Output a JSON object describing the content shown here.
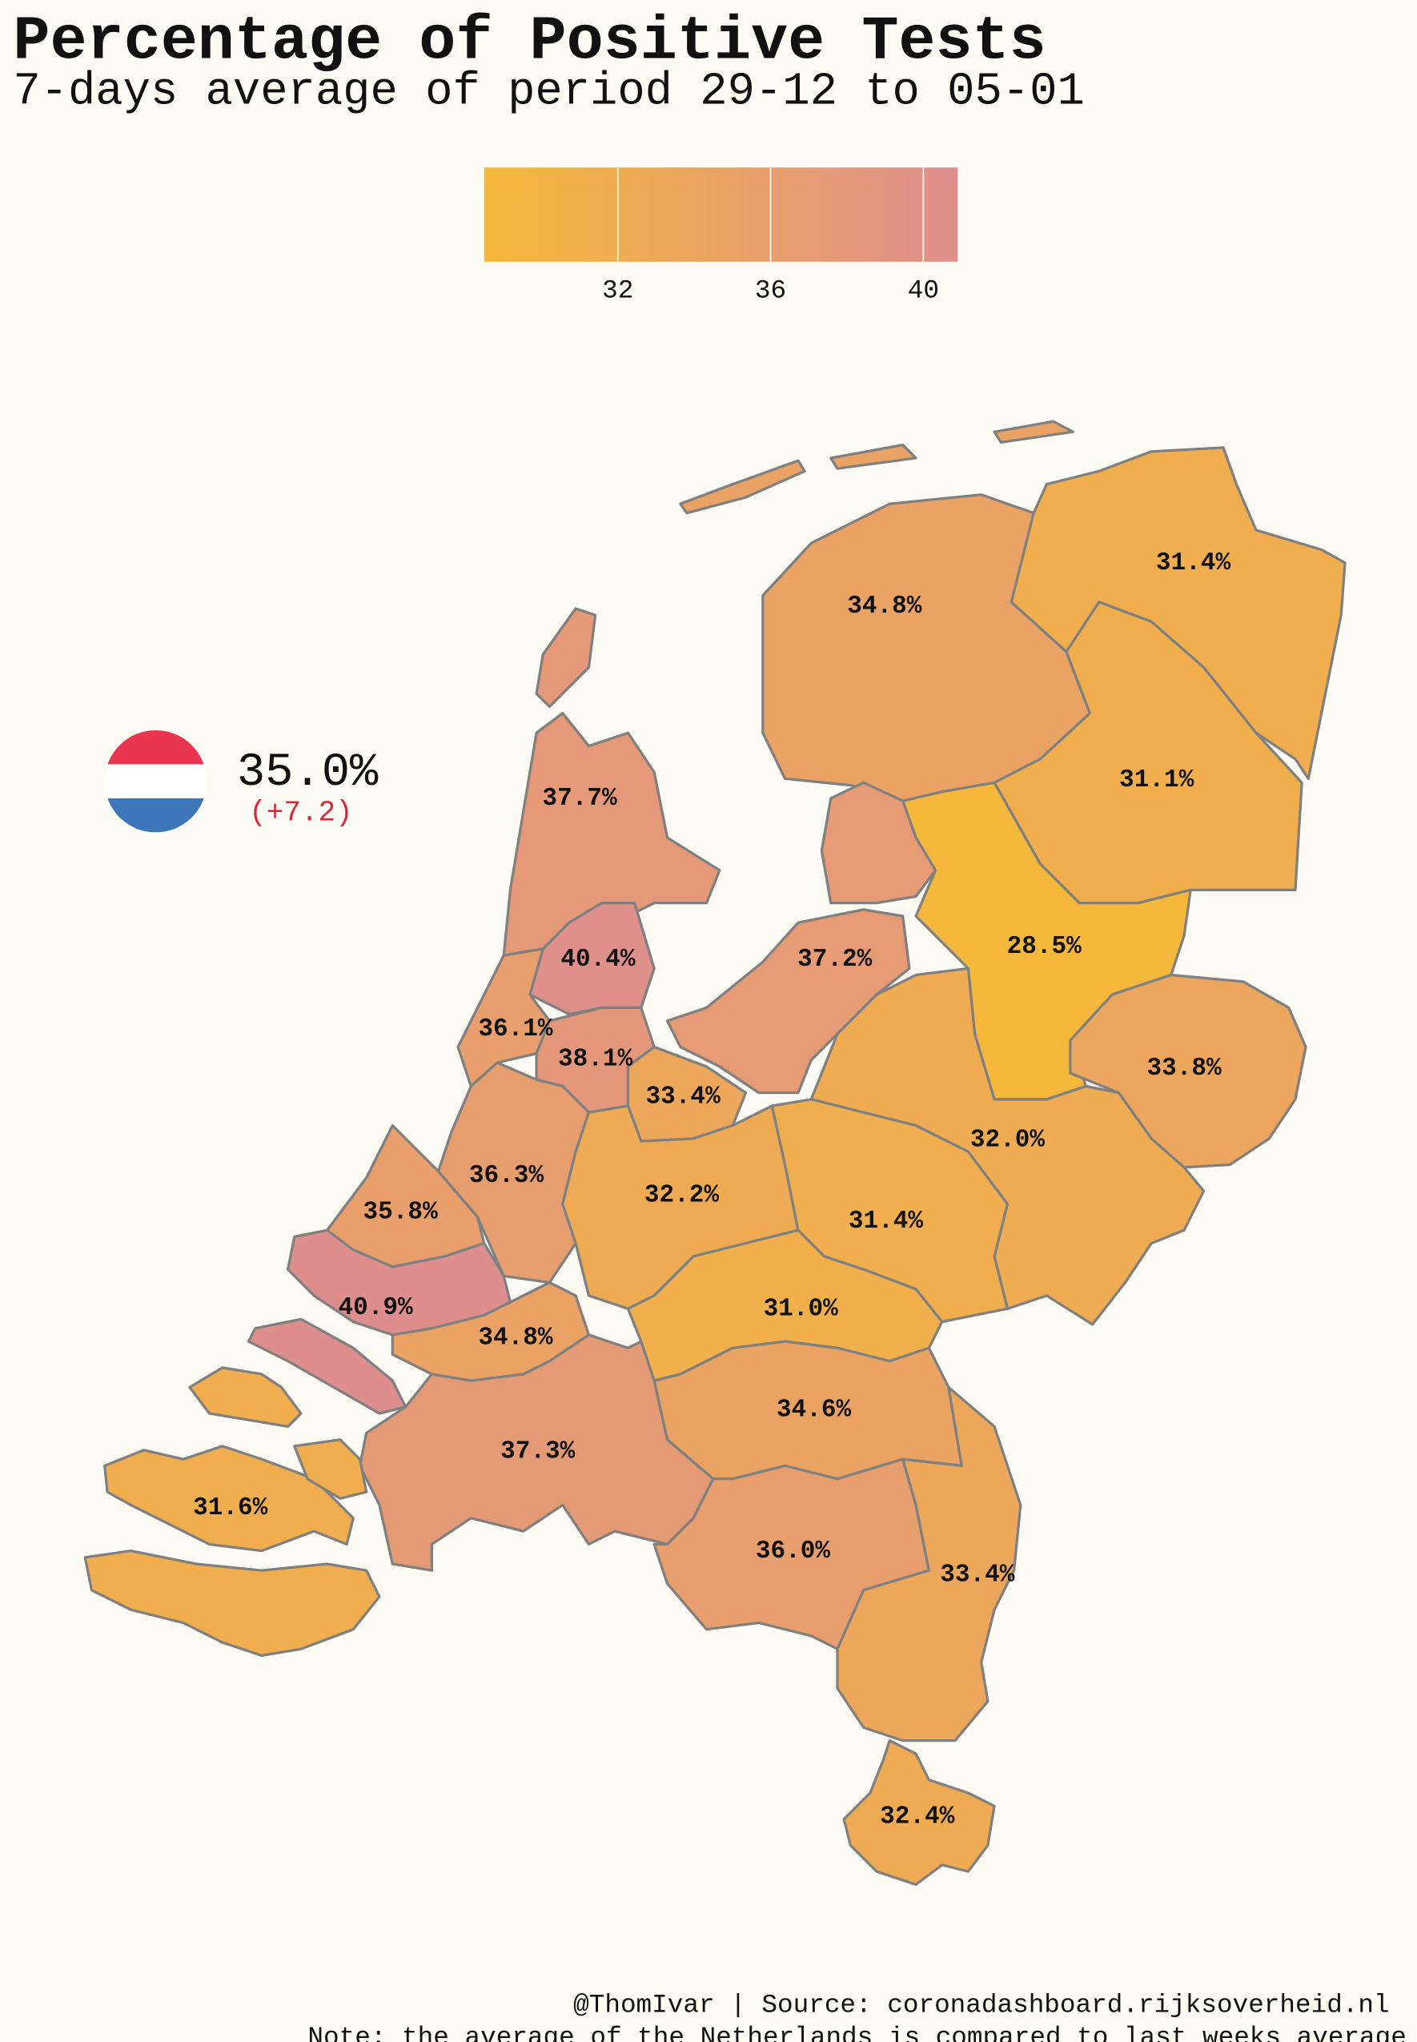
{
  "chart_data": {
    "type": "choropleth",
    "title": "Percentage of Positive Tests",
    "subtitle": "7-days average of period 29-12 to 05-01",
    "clim": [
      28.5,
      40.9
    ],
    "cticks": [
      32,
      36,
      40
    ],
    "colormap": [
      "#f5b83a",
      "#df8e8e"
    ],
    "national": "35.0%",
    "change": "(+7.2)",
    "values": [
      34.8,
      31.4,
      31.1,
      28.5,
      33.8,
      37.7,
      40.4,
      37.2,
      36.1,
      38.1,
      33.4,
      32.0,
      36.3,
      35.8,
      32.2,
      31.4,
      40.9,
      31.0,
      34.8,
      34.6,
      37.3,
      31.6,
      36.0,
      33.4,
      32.4
    ],
    "value_labels": [
      "34.8%",
      "31.4%",
      "31.1%",
      "28.5%",
      "33.8%",
      "37.7%",
      "40.4%",
      "37.2%",
      "36.1%",
      "38.1%",
      "33.4%",
      "32.0%",
      "36.3%",
      "35.8%",
      "32.2%",
      "31.4%",
      "40.9%",
      "31.0%",
      "34.8%",
      "34.6%",
      "37.3%",
      "31.6%",
      "36.0%",
      "33.4%",
      "32.4%"
    ],
    "source": "@ThomIvar | Source: coronadashboard.rijksoverheid.nl",
    "note": "Note: the average of the Netherlands is compared to last weeks average"
  }
}
